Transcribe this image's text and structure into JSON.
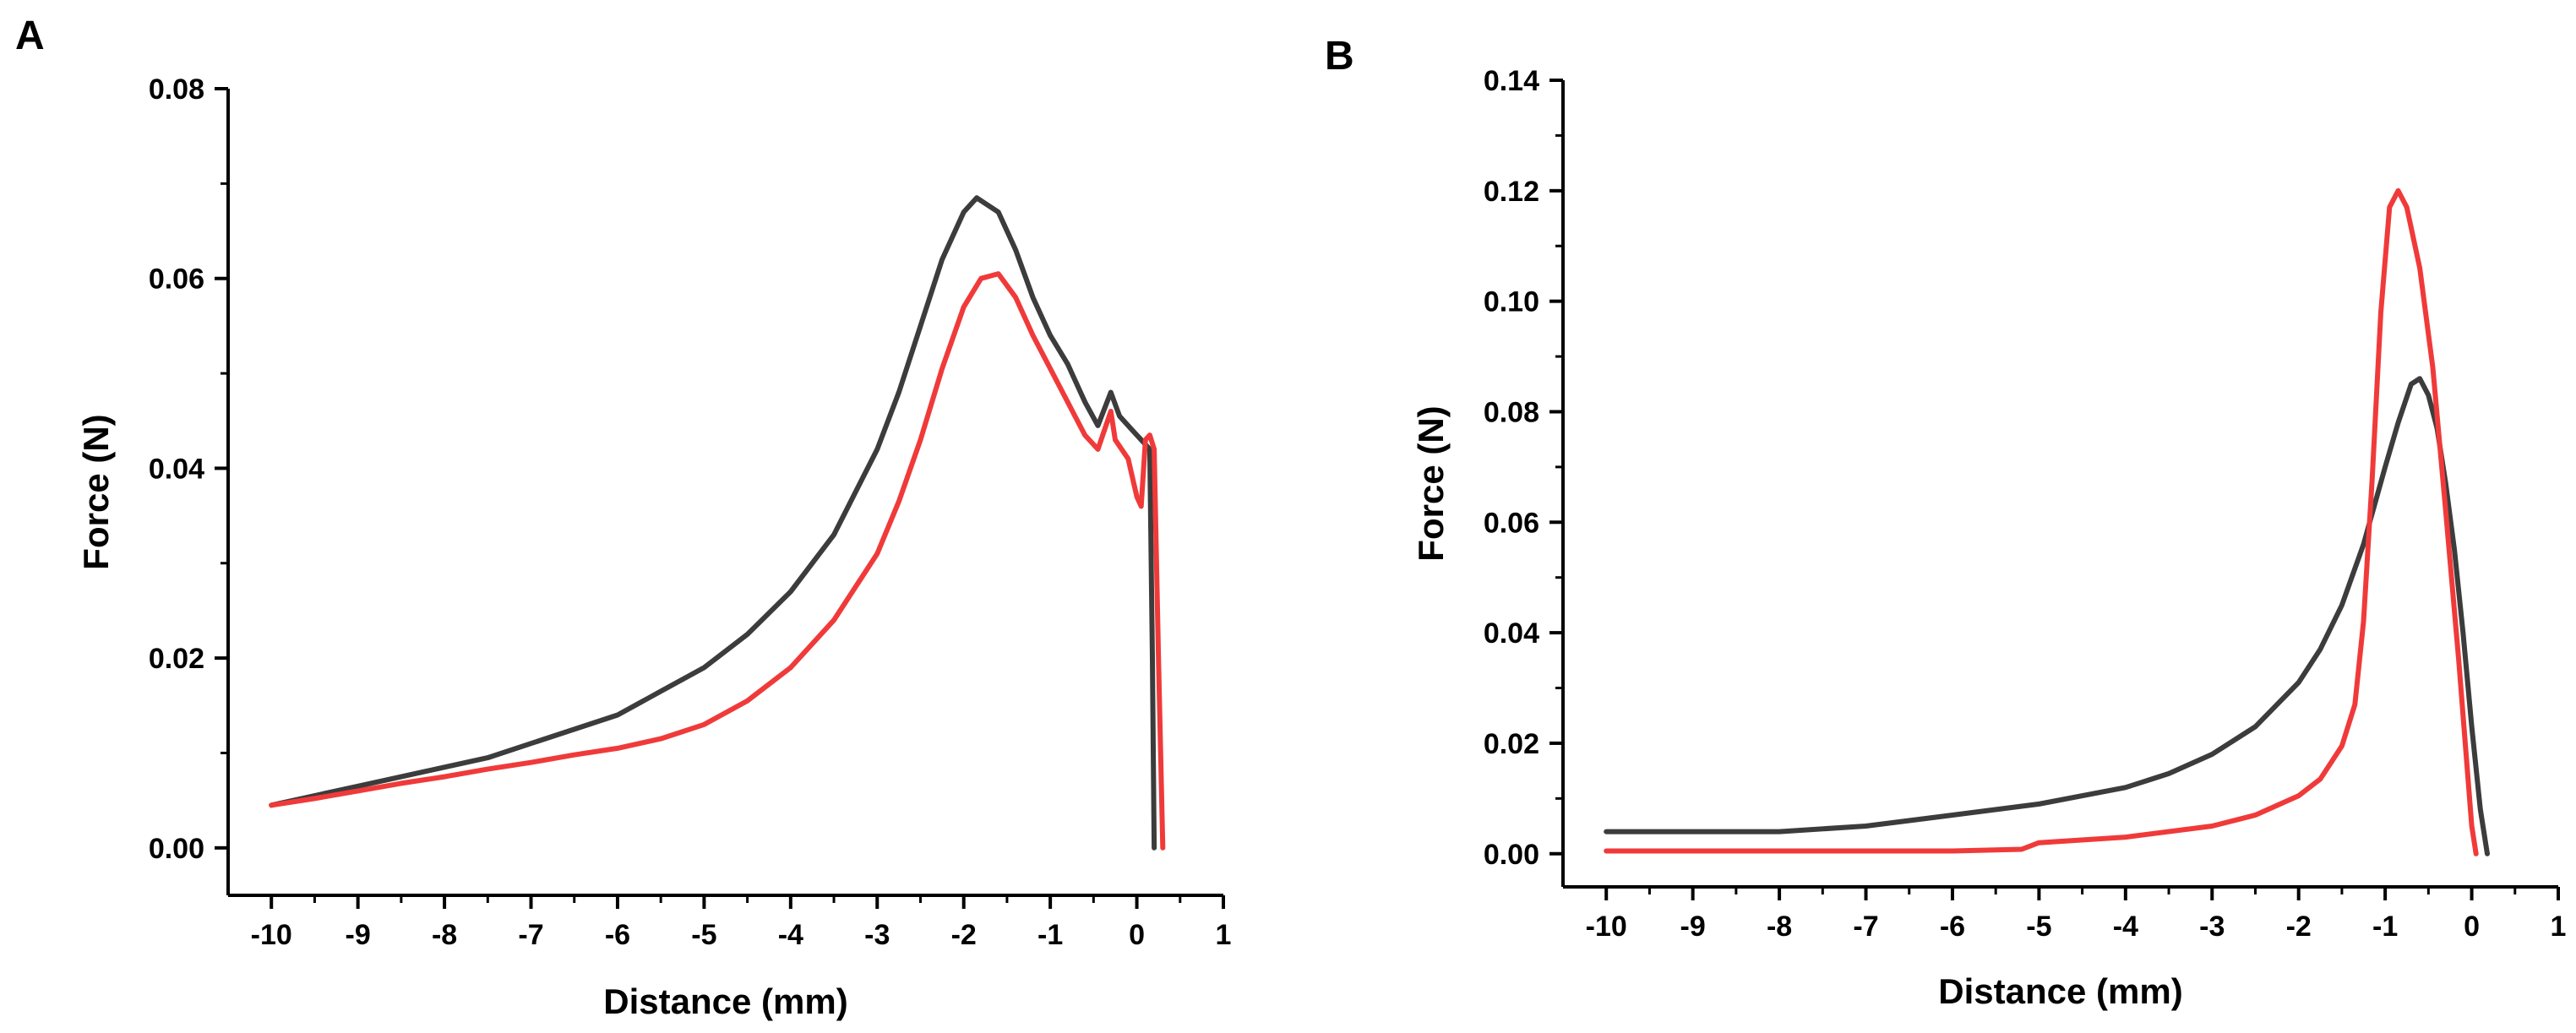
{
  "colors": {
    "black_series": "#3c3c3c",
    "red_series": "#f03a3a",
    "axis": "#000000"
  },
  "chart_data": [
    {
      "type": "line",
      "panel_label": "A",
      "title": "",
      "xlabel": "Distance (mm)",
      "ylabel": "Force (N)",
      "xlim": [
        -10.5,
        1
      ],
      "ylim": [
        -0.005,
        0.08
      ],
      "xticks": [
        -10,
        -9,
        -8,
        -7,
        -6,
        -5,
        -4,
        -3,
        -2,
        -1,
        0,
        1
      ],
      "yticks": [
        0.0,
        0.02,
        0.04,
        0.06,
        0.08
      ],
      "ytick_labels": [
        "0.00",
        "0.02",
        "0.04",
        "0.06",
        "0.08"
      ],
      "grid": false,
      "legend": "none",
      "series": [
        {
          "color": "black",
          "x": [
            -10,
            -9.5,
            -9,
            -8.5,
            -8,
            -7.5,
            -7,
            -6.5,
            -6,
            -5.5,
            -5,
            -4.5,
            -4,
            -3.5,
            -3,
            -2.75,
            -2.5,
            -2.25,
            -2,
            -1.85,
            -1.6,
            -1.4,
            -1.2,
            -1,
            -0.8,
            -0.6,
            -0.45,
            -0.3,
            -0.2,
            -0.05,
            0.05,
            0.15,
            0.18,
            0.2
          ],
          "y": [
            0.0045,
            0.0055,
            0.0065,
            0.0075,
            0.0085,
            0.0095,
            0.011,
            0.0125,
            0.014,
            0.0165,
            0.019,
            0.0225,
            0.027,
            0.033,
            0.042,
            0.048,
            0.055,
            0.062,
            0.067,
            0.0685,
            0.067,
            0.063,
            0.058,
            0.054,
            0.051,
            0.047,
            0.0445,
            0.048,
            0.0455,
            0.044,
            0.043,
            0.042,
            0.02,
            0.0
          ]
        },
        {
          "color": "red",
          "x": [
            -10,
            -9.5,
            -9,
            -8.5,
            -8,
            -7.5,
            -7,
            -6.5,
            -6,
            -5.5,
            -5,
            -4.5,
            -4,
            -3.5,
            -3,
            -2.75,
            -2.5,
            -2.25,
            -2,
            -1.8,
            -1.6,
            -1.4,
            -1.2,
            -1,
            -0.8,
            -0.6,
            -0.45,
            -0.3,
            -0.25,
            -0.1,
            0.0,
            0.05,
            0.1,
            0.15,
            0.2,
            0.25,
            0.3
          ],
          "y": [
            0.0045,
            0.0052,
            0.006,
            0.0068,
            0.0075,
            0.0083,
            0.009,
            0.0098,
            0.0105,
            0.0115,
            0.013,
            0.0155,
            0.019,
            0.024,
            0.031,
            0.0365,
            0.043,
            0.0505,
            0.057,
            0.06,
            0.0605,
            0.058,
            0.054,
            0.0505,
            0.047,
            0.0435,
            0.042,
            0.046,
            0.043,
            0.041,
            0.037,
            0.036,
            0.043,
            0.0435,
            0.042,
            0.02,
            0.0
          ]
        }
      ]
    },
    {
      "type": "line",
      "panel_label": "B",
      "title": "",
      "xlabel": "Distance (mm)",
      "ylabel": "Force (N)",
      "xlim": [
        -10.5,
        1
      ],
      "ylim": [
        -0.006,
        0.14
      ],
      "xticks": [
        -10,
        -9,
        -8,
        -7,
        -6,
        -5,
        -4,
        -3,
        -2,
        -1,
        0,
        1
      ],
      "yticks": [
        0.0,
        0.02,
        0.04,
        0.06,
        0.08,
        0.1,
        0.12,
        0.14
      ],
      "ytick_labels": [
        "0.00",
        "0.02",
        "0.04",
        "0.06",
        "0.08",
        "0.10",
        "0.12",
        "0.14"
      ],
      "grid": false,
      "legend": "none",
      "series": [
        {
          "color": "black",
          "x": [
            -10,
            -9,
            -8,
            -7,
            -6,
            -5,
            -4,
            -3.5,
            -3,
            -2.5,
            -2,
            -1.75,
            -1.5,
            -1.25,
            -1,
            -0.85,
            -0.7,
            -0.6,
            -0.5,
            -0.4,
            -0.3,
            -0.2,
            -0.1,
            0.0,
            0.1,
            0.18
          ],
          "y": [
            0.004,
            0.004,
            0.004,
            0.005,
            0.007,
            0.009,
            0.012,
            0.0145,
            0.018,
            0.023,
            0.031,
            0.037,
            0.045,
            0.056,
            0.07,
            0.078,
            0.085,
            0.086,
            0.083,
            0.077,
            0.067,
            0.055,
            0.04,
            0.023,
            0.008,
            0.0
          ]
        },
        {
          "color": "red",
          "x": [
            -10,
            -9,
            -8,
            -7,
            -6,
            -5.2,
            -5,
            -4,
            -3,
            -2.5,
            -2,
            -1.75,
            -1.5,
            -1.35,
            -1.25,
            -1.15,
            -1.05,
            -0.95,
            -0.85,
            -0.75,
            -0.6,
            -0.45,
            -0.3,
            -0.15,
            0.0,
            0.05
          ],
          "y": [
            0.0005,
            0.0005,
            0.0005,
            0.0005,
            0.0005,
            0.0008,
            0.002,
            0.003,
            0.005,
            0.007,
            0.0105,
            0.0135,
            0.0195,
            0.027,
            0.042,
            0.068,
            0.098,
            0.117,
            0.12,
            0.117,
            0.106,
            0.088,
            0.062,
            0.035,
            0.005,
            0.0
          ]
        }
      ]
    }
  ]
}
